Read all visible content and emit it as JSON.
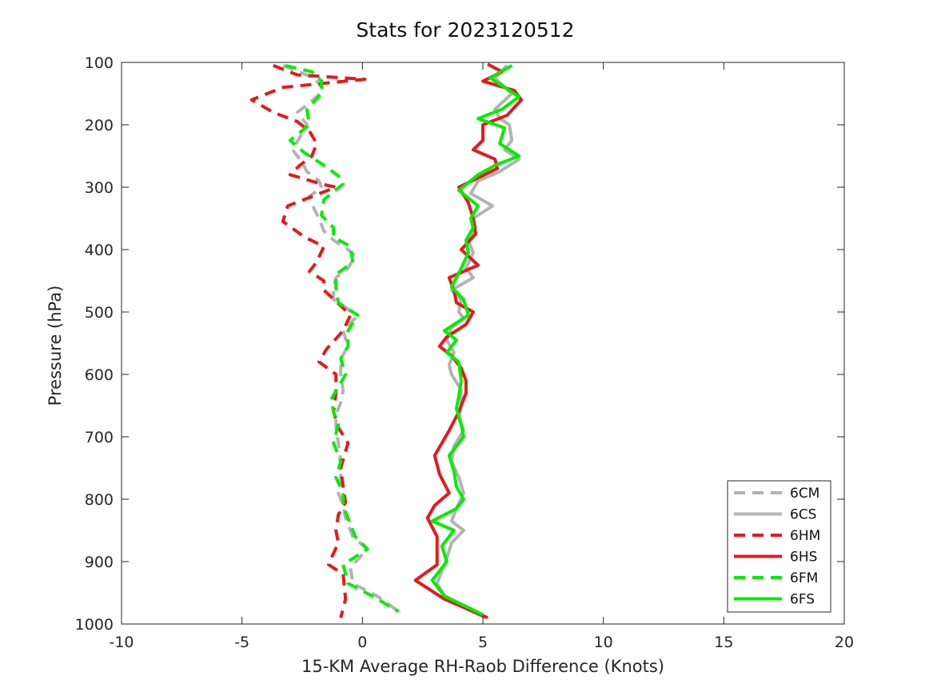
{
  "chart_data": {
    "type": "line",
    "title": "Stats for 2023120512",
    "xlabel": "15-KM Average RH-Raob Difference (Knots)",
    "ylabel": "Pressure (hPa)",
    "xlim": [
      -10,
      20
    ],
    "ylim": [
      100,
      1000
    ],
    "y_reversed": true,
    "xticks": [
      "-10",
      "-5",
      "0",
      "5",
      "10",
      "15",
      "20"
    ],
    "yticks": [
      "100",
      "200",
      "300",
      "400",
      "500",
      "600",
      "700",
      "800",
      "900",
      "1000"
    ],
    "grid": false,
    "legend_position": "bottom-right",
    "series": [
      {
        "name": "6CM",
        "color": "#b3b3b3",
        "dash": true,
        "points": [
          [
            -3.3,
            105
          ],
          [
            -2.0,
            125
          ],
          [
            -1.6,
            145
          ],
          [
            -2.2,
            165
          ],
          [
            -2.7,
            180
          ],
          [
            -2.3,
            200
          ],
          [
            -2.6,
            220
          ],
          [
            -2.9,
            240
          ],
          [
            -2.5,
            260
          ],
          [
            -2.3,
            275
          ],
          [
            -1.8,
            290
          ],
          [
            -1.7,
            300
          ],
          [
            -2.2,
            315
          ],
          [
            -2.0,
            335
          ],
          [
            -1.8,
            350
          ],
          [
            -1.6,
            370
          ],
          [
            -1.2,
            385
          ],
          [
            -0.6,
            400
          ],
          [
            -0.3,
            410
          ],
          [
            -0.6,
            430
          ],
          [
            -1.1,
            445
          ],
          [
            -1.2,
            460
          ],
          [
            -1.2,
            480
          ],
          [
            -0.6,
            495
          ],
          [
            -0.3,
            510
          ],
          [
            -0.8,
            530
          ],
          [
            -0.6,
            555
          ],
          [
            -0.9,
            575
          ],
          [
            -0.9,
            600
          ],
          [
            -0.8,
            625
          ],
          [
            -0.9,
            645
          ],
          [
            -1.1,
            665
          ],
          [
            -1.1,
            685
          ],
          [
            -1.0,
            710
          ],
          [
            -0.9,
            740
          ],
          [
            -0.9,
            770
          ],
          [
            -1.0,
            790
          ],
          [
            -0.8,
            810
          ],
          [
            -0.7,
            830
          ],
          [
            -0.4,
            860
          ],
          [
            0.2,
            880
          ],
          [
            -0.5,
            910
          ],
          [
            -0.4,
            935
          ],
          [
            0.6,
            955
          ],
          [
            1.5,
            980
          ]
        ]
      },
      {
        "name": "6CS",
        "color": "#b3b3b3",
        "dash": false,
        "points": [
          [
            6.0,
            105
          ],
          [
            5.5,
            125
          ],
          [
            6.2,
            150
          ],
          [
            5.5,
            175
          ],
          [
            5.7,
            190
          ],
          [
            6.1,
            200
          ],
          [
            6.2,
            225
          ],
          [
            5.9,
            240
          ],
          [
            6.5,
            255
          ],
          [
            5.7,
            275
          ],
          [
            4.8,
            290
          ],
          [
            4.5,
            310
          ],
          [
            5.4,
            330
          ],
          [
            4.6,
            350
          ],
          [
            4.7,
            365
          ],
          [
            4.4,
            385
          ],
          [
            4.6,
            405
          ],
          [
            4.3,
            430
          ],
          [
            4.6,
            445
          ],
          [
            3.7,
            465
          ],
          [
            4.1,
            480
          ],
          [
            4.0,
            500
          ],
          [
            4.2,
            510
          ],
          [
            3.7,
            525
          ],
          [
            3.5,
            545
          ],
          [
            3.8,
            565
          ],
          [
            3.6,
            585
          ],
          [
            3.7,
            600
          ],
          [
            4.1,
            625
          ],
          [
            4.1,
            650
          ],
          [
            4.0,
            670
          ],
          [
            4.2,
            690
          ],
          [
            3.8,
            715
          ],
          [
            3.7,
            740
          ],
          [
            4.0,
            765
          ],
          [
            4.2,
            790
          ],
          [
            3.9,
            815
          ],
          [
            3.7,
            835
          ],
          [
            4.2,
            850
          ],
          [
            3.7,
            870
          ],
          [
            3.5,
            895
          ],
          [
            3.3,
            915
          ],
          [
            3.1,
            935
          ],
          [
            3.5,
            960
          ],
          [
            5.1,
            990
          ]
        ]
      },
      {
        "name": "6HM",
        "color": "#e41a1c",
        "dash": true,
        "points": [
          [
            -3.7,
            105
          ],
          [
            -2.7,
            120
          ],
          [
            0.1,
            127
          ],
          [
            -3.3,
            140
          ],
          [
            -4.6,
            160
          ],
          [
            -3.7,
            180
          ],
          [
            -2.7,
            195
          ],
          [
            -2.2,
            210
          ],
          [
            -1.9,
            230
          ],
          [
            -2.1,
            250
          ],
          [
            -2.6,
            265
          ],
          [
            -3.0,
            280
          ],
          [
            -1.7,
            295
          ],
          [
            -1.1,
            300
          ],
          [
            -3.1,
            330
          ],
          [
            -3.3,
            355
          ],
          [
            -2.4,
            380
          ],
          [
            -1.6,
            395
          ],
          [
            -1.9,
            420
          ],
          [
            -2.2,
            435
          ],
          [
            -1.6,
            450
          ],
          [
            -1.6,
            465
          ],
          [
            -0.9,
            490
          ],
          [
            -0.5,
            505
          ],
          [
            -0.8,
            530
          ],
          [
            -1.5,
            560
          ],
          [
            -1.8,
            580
          ],
          [
            -1.1,
            600
          ],
          [
            -1.1,
            630
          ],
          [
            -1.2,
            660
          ],
          [
            -1.0,
            685
          ],
          [
            -0.6,
            710
          ],
          [
            -0.9,
            750
          ],
          [
            -0.8,
            780
          ],
          [
            -0.7,
            805
          ],
          [
            -1.0,
            825
          ],
          [
            -1.1,
            850
          ],
          [
            -1.0,
            870
          ],
          [
            -1.3,
            895
          ],
          [
            -1.4,
            905
          ],
          [
            -0.8,
            920
          ],
          [
            -0.7,
            960
          ],
          [
            -0.9,
            990
          ]
        ]
      },
      {
        "name": "6HS",
        "color": "#e41a1c",
        "dash": false,
        "points": [
          [
            5.2,
            103
          ],
          [
            5.8,
            115
          ],
          [
            5.0,
            130
          ],
          [
            6.3,
            145
          ],
          [
            6.6,
            160
          ],
          [
            6.0,
            185
          ],
          [
            5.0,
            200
          ],
          [
            5.0,
            225
          ],
          [
            4.6,
            240
          ],
          [
            5.5,
            255
          ],
          [
            5.6,
            270
          ],
          [
            4.8,
            285
          ],
          [
            4.0,
            300
          ],
          [
            4.4,
            325
          ],
          [
            4.6,
            350
          ],
          [
            4.7,
            375
          ],
          [
            4.1,
            400
          ],
          [
            4.8,
            425
          ],
          [
            3.6,
            445
          ],
          [
            3.8,
            465
          ],
          [
            3.9,
            485
          ],
          [
            4.6,
            500
          ],
          [
            4.3,
            520
          ],
          [
            3.5,
            540
          ],
          [
            3.2,
            555
          ],
          [
            3.7,
            570
          ],
          [
            4.1,
            590
          ],
          [
            4.3,
            610
          ],
          [
            4.3,
            630
          ],
          [
            4.0,
            660
          ],
          [
            3.6,
            690
          ],
          [
            3.0,
            730
          ],
          [
            3.2,
            760
          ],
          [
            3.6,
            790
          ],
          [
            3.0,
            810
          ],
          [
            2.7,
            830
          ],
          [
            3.1,
            860
          ],
          [
            3.1,
            880
          ],
          [
            3.1,
            905
          ],
          [
            2.2,
            930
          ],
          [
            3.4,
            960
          ],
          [
            5.2,
            990
          ]
        ]
      },
      {
        "name": "6FM",
        "color": "#00ee00",
        "dash": true,
        "points": [
          [
            -3.2,
            105
          ],
          [
            -2.1,
            115
          ],
          [
            -1.7,
            130
          ],
          [
            -1.7,
            150
          ],
          [
            -2.3,
            175
          ],
          [
            -2.2,
            200
          ],
          [
            -3.0,
            225
          ],
          [
            -2.4,
            245
          ],
          [
            -1.4,
            270
          ],
          [
            -0.9,
            285
          ],
          [
            -0.8,
            295
          ],
          [
            -1.6,
            320
          ],
          [
            -1.7,
            345
          ],
          [
            -1.2,
            365
          ],
          [
            -1.2,
            380
          ],
          [
            -0.5,
            395
          ],
          [
            -0.4,
            420
          ],
          [
            -1.1,
            440
          ],
          [
            -1.1,
            460
          ],
          [
            -1.0,
            485
          ],
          [
            -0.2,
            505
          ],
          [
            -0.6,
            530
          ],
          [
            -0.6,
            555
          ],
          [
            -0.9,
            575
          ],
          [
            -0.7,
            600
          ],
          [
            -1.0,
            620
          ],
          [
            -1.3,
            640
          ],
          [
            -1.2,
            660
          ],
          [
            -1.0,
            680
          ],
          [
            -1.2,
            710
          ],
          [
            -0.9,
            740
          ],
          [
            -1.1,
            765
          ],
          [
            -0.8,
            790
          ],
          [
            -0.8,
            810
          ],
          [
            -0.6,
            830
          ],
          [
            -0.3,
            860
          ],
          [
            0.2,
            880
          ],
          [
            -0.8,
            905
          ],
          [
            -0.6,
            935
          ],
          [
            0.4,
            955
          ],
          [
            1.5,
            980
          ]
        ]
      },
      {
        "name": "6FS",
        "color": "#00ee00",
        "dash": false,
        "points": [
          [
            6.2,
            105
          ],
          [
            5.3,
            125
          ],
          [
            6.5,
            155
          ],
          [
            5.8,
            175
          ],
          [
            4.8,
            190
          ],
          [
            5.9,
            205
          ],
          [
            5.7,
            230
          ],
          [
            6.5,
            250
          ],
          [
            5.5,
            265
          ],
          [
            4.8,
            280
          ],
          [
            4.0,
            305
          ],
          [
            4.8,
            330
          ],
          [
            4.5,
            350
          ],
          [
            4.6,
            365
          ],
          [
            4.3,
            385
          ],
          [
            4.4,
            405
          ],
          [
            4.1,
            430
          ],
          [
            3.7,
            460
          ],
          [
            4.2,
            480
          ],
          [
            4.4,
            505
          ],
          [
            3.4,
            530
          ],
          [
            3.9,
            545
          ],
          [
            3.5,
            565
          ],
          [
            4.0,
            580
          ],
          [
            4.1,
            610
          ],
          [
            4.0,
            635
          ],
          [
            3.9,
            655
          ],
          [
            4.1,
            680
          ],
          [
            4.2,
            700
          ],
          [
            3.6,
            730
          ],
          [
            3.8,
            755
          ],
          [
            3.9,
            780
          ],
          [
            4.2,
            800
          ],
          [
            3.9,
            815
          ],
          [
            2.9,
            835
          ],
          [
            3.8,
            850
          ],
          [
            3.3,
            875
          ],
          [
            3.5,
            900
          ],
          [
            2.9,
            930
          ],
          [
            3.4,
            955
          ],
          [
            5.0,
            985
          ]
        ]
      }
    ]
  }
}
